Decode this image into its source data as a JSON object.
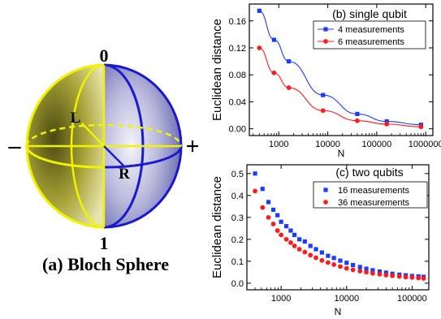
{
  "bloch": {
    "label_top": "0",
    "label_bottom": "1",
    "label_left": "–",
    "label_right": "+",
    "label_L": "L",
    "label_R": "R",
    "caption": "(a) Bloch Sphere",
    "colors": {
      "left_hemisphere": "#f2f200",
      "right_hemisphere": "#1a1acc"
    }
  },
  "chart_data": [
    {
      "id": "b",
      "type": "scatter",
      "panel_title": "(b) single qubit",
      "xlabel": "N",
      "ylabel": "Euclidean distance",
      "xscale": "log",
      "xlim": [
        250,
        1400000
      ],
      "ylim": [
        -0.01,
        0.185
      ],
      "xticks": [
        1000,
        10000,
        100000,
        1000000
      ],
      "xtick_labels": [
        "1000",
        "10000",
        "100000",
        "1000000"
      ],
      "yticks": [
        0.0,
        0.04,
        0.08,
        0.12,
        0.16
      ],
      "ytick_labels": [
        "0.00",
        "0.04",
        "0.08",
        "0.12",
        "0.16"
      ],
      "legend_position": "top-right",
      "series": [
        {
          "name": "4 measurements",
          "color": "#1a3cff",
          "marker": "square",
          "line": true,
          "x": [
            400,
            800,
            1600,
            8000,
            40000,
            160000,
            800000
          ],
          "y": [
            0.175,
            0.132,
            0.1,
            0.05,
            0.022,
            0.011,
            0.006
          ]
        },
        {
          "name": "6 measurements",
          "color": "#ff1a1a",
          "marker": "circle",
          "line": true,
          "x": [
            400,
            800,
            1600,
            8000,
            40000,
            160000,
            800000
          ],
          "y": [
            0.12,
            0.083,
            0.061,
            0.027,
            0.012,
            0.007,
            0.003
          ]
        }
      ]
    },
    {
      "id": "c",
      "type": "scatter",
      "panel_title": "(c) two qubits",
      "xlabel": "N",
      "ylabel": "Euclidean distance",
      "xscale": "log",
      "xlim": [
        300,
        180000
      ],
      "ylim": [
        -0.03,
        0.54
      ],
      "xticks": [
        1000,
        10000,
        100000
      ],
      "xtick_labels": [
        "1000",
        "10000",
        "100000"
      ],
      "yticks": [
        0.0,
        0.1,
        0.2,
        0.3,
        0.4,
        0.5
      ],
      "ytick_labels": [
        "0.0",
        "0.1",
        "0.2",
        "0.3",
        "0.4",
        "0.5"
      ],
      "legend_position": "top-right",
      "series": [
        {
          "name": "16 measurements",
          "color": "#1a3cff",
          "marker": "square",
          "line": false,
          "x": [
            400,
            520,
            640,
            760,
            880,
            1000,
            1200,
            1400,
            1600,
            1900,
            2300,
            2800,
            3400,
            4200,
            5200,
            6400,
            8000,
            10000,
            12500,
            16000,
            20000,
            25000,
            32000,
            40000,
            50000,
            64000,
            80000,
            100000,
            125000,
            150000
          ],
          "y": [
            0.5,
            0.43,
            0.37,
            0.335,
            0.31,
            0.28,
            0.26,
            0.24,
            0.22,
            0.2,
            0.19,
            0.17,
            0.155,
            0.14,
            0.125,
            0.115,
            0.103,
            0.093,
            0.083,
            0.074,
            0.066,
            0.059,
            0.053,
            0.048,
            0.043,
            0.039,
            0.036,
            0.033,
            0.031,
            0.029
          ]
        },
        {
          "name": "36 measurements",
          "color": "#ff1a1a",
          "marker": "circle",
          "line": false,
          "x": [
            400,
            520,
            640,
            760,
            880,
            1000,
            1200,
            1400,
            1600,
            1900,
            2300,
            2800,
            3400,
            4200,
            5200,
            6400,
            8000,
            10000,
            12500,
            16000,
            20000,
            25000,
            32000,
            40000,
            50000,
            64000,
            80000,
            100000,
            125000,
            150000
          ],
          "y": [
            0.42,
            0.345,
            0.3,
            0.27,
            0.24,
            0.22,
            0.2,
            0.185,
            0.17,
            0.155,
            0.142,
            0.128,
            0.116,
            0.104,
            0.094,
            0.085,
            0.076,
            0.068,
            0.061,
            0.055,
            0.05,
            0.045,
            0.041,
            0.037,
            0.034,
            0.031,
            0.028,
            0.026,
            0.024,
            0.022
          ]
        }
      ]
    }
  ]
}
